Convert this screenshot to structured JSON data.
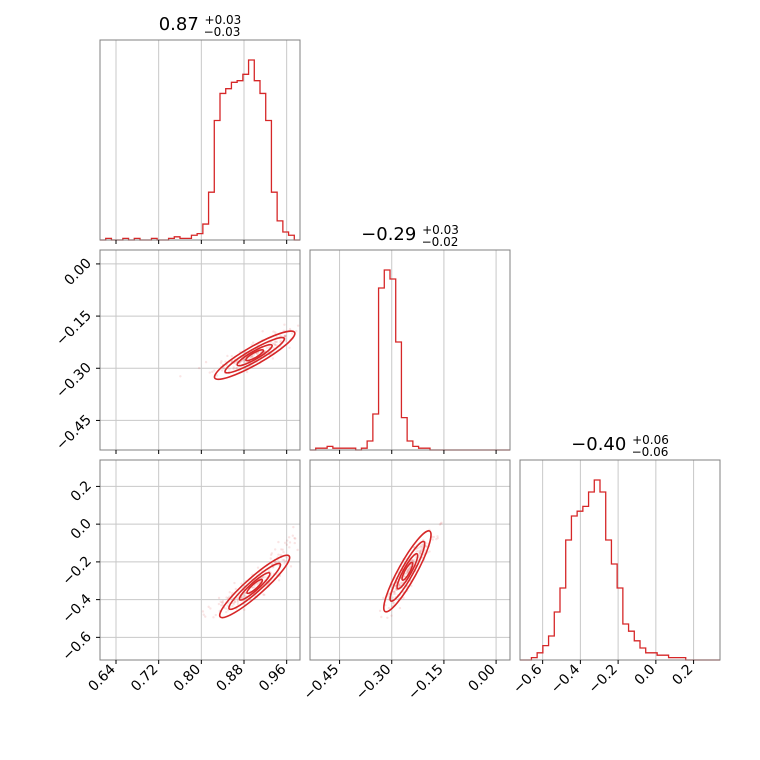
{
  "chart_data": {
    "type": "corner",
    "color": "#d62728",
    "grid": true,
    "parameters": [
      {
        "median": "0.87",
        "plus": "+0.03",
        "minus": "−0.03",
        "range": [
          0.61,
          0.985
        ],
        "ticks": [
          0.64,
          0.72,
          0.8,
          0.88,
          0.96
        ],
        "tick_labels": [
          "0.64",
          "0.72",
          "0.80",
          "0.88",
          "0.96"
        ]
      },
      {
        "median": "−0.29",
        "plus": "+0.03",
        "minus": "−0.02",
        "range": [
          -0.535,
          0.04
        ],
        "ticks": [
          0.0,
          -0.15,
          -0.3,
          -0.45
        ],
        "tick_labels": [
          "0.00",
          "−0.15",
          "−0.30",
          "−0.45"
        ]
      },
      {
        "median": "−0.40",
        "plus": "+0.06",
        "minus": "−0.06",
        "range": [
          -0.72,
          0.34
        ],
        "ticks": [
          -0.6,
          -0.4,
          -0.2,
          0.0,
          0.2
        ],
        "tick_labels": [
          "−0.6",
          "−0.4",
          "−0.2",
          "0.0",
          "0.2"
        ]
      }
    ],
    "y_ticks": {
      "param2": {
        "ticks": [
          0.0,
          -0.15,
          -0.3,
          -0.45
        ],
        "tick_labels": [
          "0.00",
          "−0.15",
          "−0.30",
          "−0.45"
        ]
      },
      "param3": {
        "ticks": [
          0.2,
          0.0,
          -0.2,
          -0.4,
          -0.6
        ],
        "tick_labels": [
          "0.2",
          "0.0",
          "−0.2",
          "−0.4",
          "−0.6"
        ]
      }
    },
    "hist1d": [
      {
        "edges_from": 0.61,
        "edges_to": 0.985,
        "counts": [
          0,
          1,
          0,
          0,
          1,
          0,
          1,
          0,
          0,
          1,
          0,
          0,
          1,
          2,
          1,
          1,
          3,
          4,
          10,
          30,
          75,
          92,
          95,
          99,
          100,
          104,
          113,
          100,
          92,
          75,
          30,
          12,
          5,
          3,
          0
        ]
      },
      {
        "edges_from": -0.535,
        "edges_to": 0.04,
        "counts": [
          0,
          1,
          1,
          2,
          1,
          1,
          1,
          1,
          0,
          1,
          5,
          20,
          90,
          100,
          95,
          60,
          18,
          5,
          2,
          1,
          1,
          0,
          0,
          0,
          0,
          0,
          0,
          0,
          0,
          0,
          0,
          0,
          0,
          0,
          0
        ]
      },
      {
        "edges_from": -0.72,
        "edges_to": 0.34,
        "counts": [
          0,
          0,
          1,
          3,
          6,
          10,
          20,
          30,
          50,
          60,
          62,
          64,
          70,
          75,
          70,
          50,
          40,
          30,
          15,
          12,
          8,
          5,
          3,
          3,
          2,
          2,
          1,
          1,
          1,
          0,
          0,
          0,
          0,
          0,
          0
        ]
      }
    ],
    "hist2d": [
      {
        "x_param": 0,
        "y_param": 1,
        "ridge": [
          [
            0.8,
            -0.315
          ],
          [
            0.84,
            -0.3
          ],
          [
            0.88,
            -0.28
          ],
          [
            0.92,
            -0.245
          ],
          [
            0.96,
            -0.2
          ],
          [
            0.985,
            -0.18
          ]
        ],
        "spread": [
          0.012,
          0.01
        ]
      },
      {
        "x_param": 0,
        "y_param": 2,
        "ridge": [
          [
            0.8,
            -0.5
          ],
          [
            0.84,
            -0.44
          ],
          [
            0.88,
            -0.38
          ],
          [
            0.92,
            -0.28
          ],
          [
            0.96,
            -0.12
          ],
          [
            0.985,
            0.0
          ]
        ],
        "spread": [
          0.012,
          0.02
        ]
      },
      {
        "x_param": 1,
        "y_param": 2,
        "ridge": [
          [
            -0.32,
            -0.48
          ],
          [
            -0.3,
            -0.42
          ],
          [
            -0.27,
            -0.3
          ],
          [
            -0.24,
            -0.2
          ],
          [
            -0.2,
            -0.1
          ],
          [
            -0.15,
            0.0
          ]
        ],
        "spread": [
          0.012,
          0.02
        ]
      }
    ]
  }
}
